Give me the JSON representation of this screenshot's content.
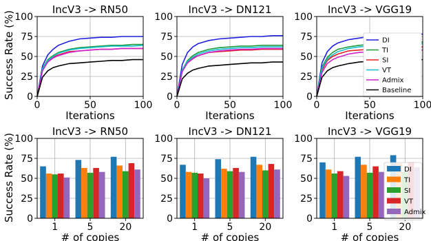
{
  "figure": {
    "y_label": "Success Rate (%)"
  },
  "colors": {
    "DI": "#1f1fdf",
    "TI": "#1a9a3a",
    "SI": "#e0201f",
    "VT": "#17becf",
    "Admix": "#cc22cc",
    "Baseline": "#000000",
    "bar_DI": "#1f77b4",
    "bar_TI": "#ff7f0e",
    "bar_SI": "#2ca02c",
    "bar_VT": "#d62728",
    "bar_Admix": "#9467bd"
  },
  "chart_data": [
    {
      "type": "line",
      "title": "IncV3 -> RN50",
      "xlabel": "Iterations",
      "ylabel": "Success Rate (%)",
      "xlim": [
        0,
        100
      ],
      "ylim": [
        0,
        100
      ],
      "xticks": [
        0,
        50,
        100
      ],
      "yticks": [
        0,
        25,
        50,
        75,
        100
      ],
      "grid": true,
      "series": [
        {
          "name": "DI",
          "x": [
            0,
            5,
            10,
            15,
            20,
            30,
            40,
            50,
            60,
            70,
            80,
            90,
            100
          ],
          "y": [
            0,
            38,
            52,
            59,
            64,
            69,
            72,
            73,
            74,
            74,
            75,
            75,
            75
          ]
        },
        {
          "name": "TI",
          "x": [
            0,
            5,
            10,
            15,
            20,
            30,
            40,
            50,
            60,
            70,
            80,
            90,
            100
          ],
          "y": [
            0,
            35,
            46,
            51,
            55,
            59,
            61,
            62,
            63,
            64,
            64,
            65,
            65
          ]
        },
        {
          "name": "SI",
          "x": [
            0,
            5,
            10,
            15,
            20,
            30,
            40,
            50,
            60,
            70,
            80,
            90,
            100
          ],
          "y": [
            0,
            33,
            44,
            49,
            52,
            56,
            57,
            58,
            59,
            59,
            60,
            60,
            60
          ]
        },
        {
          "name": "VT",
          "x": [
            0,
            5,
            10,
            15,
            20,
            30,
            40,
            50,
            60,
            70,
            80,
            90,
            100
          ],
          "y": [
            0,
            34,
            45,
            50,
            54,
            58,
            60,
            61,
            62,
            63,
            63,
            63,
            64
          ]
        },
        {
          "name": "Admix",
          "x": [
            0,
            5,
            10,
            15,
            20,
            30,
            40,
            50,
            60,
            70,
            80,
            90,
            100
          ],
          "y": [
            0,
            32,
            43,
            48,
            51,
            55,
            57,
            58,
            59,
            59,
            60,
            60,
            60
          ]
        },
        {
          "name": "Baseline",
          "x": [
            0,
            5,
            10,
            15,
            20,
            30,
            40,
            50,
            60,
            70,
            80,
            90,
            100
          ],
          "y": [
            0,
            24,
            32,
            36,
            38,
            41,
            42,
            43,
            44,
            45,
            45,
            46,
            46
          ]
        }
      ]
    },
    {
      "type": "line",
      "title": "IncV3 -> DN121",
      "xlabel": "Iterations",
      "ylabel": "",
      "xlim": [
        0,
        100
      ],
      "ylim": [
        0,
        100
      ],
      "xticks": [
        0,
        50,
        100
      ],
      "yticks": [
        0,
        25,
        50,
        75,
        100
      ],
      "grid": true,
      "series": [
        {
          "name": "DI",
          "x": [
            0,
            5,
            10,
            15,
            20,
            30,
            40,
            50,
            60,
            70,
            80,
            90,
            100
          ],
          "y": [
            0,
            40,
            55,
            62,
            66,
            70,
            72,
            73,
            74,
            75,
            75,
            76,
            76
          ]
        },
        {
          "name": "TI",
          "x": [
            0,
            5,
            10,
            15,
            20,
            30,
            40,
            50,
            60,
            70,
            80,
            90,
            100
          ],
          "y": [
            0,
            33,
            45,
            51,
            55,
            59,
            61,
            62,
            63,
            63,
            64,
            64,
            64
          ]
        },
        {
          "name": "SI",
          "x": [
            0,
            5,
            10,
            15,
            20,
            30,
            40,
            50,
            60,
            70,
            80,
            90,
            100
          ],
          "y": [
            0,
            32,
            43,
            48,
            51,
            55,
            56,
            57,
            58,
            58,
            59,
            59,
            59
          ]
        },
        {
          "name": "VT",
          "x": [
            0,
            5,
            10,
            15,
            20,
            30,
            40,
            50,
            60,
            70,
            80,
            90,
            100
          ],
          "y": [
            0,
            33,
            44,
            49,
            53,
            57,
            59,
            60,
            61,
            61,
            62,
            62,
            62
          ]
        },
        {
          "name": "Admix",
          "x": [
            0,
            5,
            10,
            15,
            20,
            30,
            40,
            50,
            60,
            70,
            80,
            90,
            100
          ],
          "y": [
            0,
            31,
            42,
            47,
            51,
            55,
            57,
            58,
            59,
            59,
            60,
            60,
            60
          ]
        },
        {
          "name": "Baseline",
          "x": [
            0,
            5,
            10,
            15,
            20,
            30,
            40,
            50,
            60,
            70,
            80,
            90,
            100
          ],
          "y": [
            0,
            22,
            29,
            33,
            35,
            38,
            39,
            40,
            41,
            42,
            42,
            43,
            43
          ]
        }
      ]
    },
    {
      "type": "line",
      "title": "IncV3 -> VGG19",
      "xlabel": "Iterations",
      "ylabel": "",
      "xlim": [
        0,
        100
      ],
      "ylim": [
        0,
        100
      ],
      "xticks": [
        0,
        50,
        100
      ],
      "yticks": [
        0,
        25,
        50,
        75,
        100
      ],
      "grid": true,
      "legend": "right",
      "series": [
        {
          "name": "DI",
          "x": [
            0,
            5,
            10,
            15,
            20,
            30,
            40,
            50,
            60,
            70,
            80,
            90,
            100
          ],
          "y": [
            0,
            42,
            56,
            63,
            67,
            71,
            73,
            75,
            76,
            77,
            77,
            78,
            78
          ]
        },
        {
          "name": "TI",
          "x": [
            0,
            5,
            10,
            15,
            20,
            30,
            40,
            50,
            60,
            70,
            80,
            90,
            100
          ],
          "y": [
            0,
            37,
            49,
            55,
            59,
            62,
            64,
            65,
            66,
            66,
            67,
            67,
            68
          ]
        },
        {
          "name": "SI",
          "x": [
            0,
            5,
            10,
            15,
            20,
            30,
            40,
            50,
            60,
            70,
            80,
            90,
            100
          ],
          "y": [
            0,
            33,
            45,
            50,
            53,
            57,
            58,
            59,
            60,
            60,
            61,
            61,
            62
          ]
        },
        {
          "name": "VT",
          "x": [
            0,
            5,
            10,
            15,
            20,
            30,
            40,
            50,
            60,
            70,
            80,
            90,
            100
          ],
          "y": [
            0,
            35,
            47,
            52,
            56,
            60,
            62,
            63,
            64,
            64,
            65,
            65,
            66
          ]
        },
        {
          "name": "Admix",
          "x": [
            0,
            5,
            10,
            15,
            20,
            30,
            40,
            50,
            60,
            70,
            80,
            90,
            100
          ],
          "y": [
            0,
            30,
            41,
            46,
            49,
            53,
            55,
            56,
            57,
            57,
            58,
            58,
            58
          ]
        },
        {
          "name": "Baseline",
          "x": [
            0,
            5,
            10,
            15,
            20,
            30,
            40,
            50,
            60,
            70,
            80,
            90,
            100
          ],
          "y": [
            0,
            24,
            32,
            36,
            38,
            41,
            43,
            44,
            45,
            45,
            46,
            46,
            46
          ]
        }
      ]
    },
    {
      "type": "bar",
      "title": "IncV3 -> RN50",
      "xlabel": "# of copies",
      "ylabel": "Success Rate (%)",
      "categories": [
        "1",
        "5",
        "20"
      ],
      "ylim": [
        0,
        100
      ],
      "yticks": [
        0,
        25,
        50,
        75,
        100
      ],
      "grid": true,
      "series": [
        {
          "name": "DI",
          "values": [
            65,
            73,
            77
          ]
        },
        {
          "name": "TI",
          "values": [
            56,
            63,
            66
          ]
        },
        {
          "name": "SI",
          "values": [
            55,
            57,
            59
          ]
        },
        {
          "name": "VT",
          "values": [
            56,
            63,
            69
          ]
        },
        {
          "name": "Admix",
          "values": [
            51,
            58,
            61
          ]
        }
      ]
    },
    {
      "type": "bar",
      "title": "IncV3 -> DN121",
      "xlabel": "# of copies",
      "ylabel": "",
      "categories": [
        "1",
        "5",
        "20"
      ],
      "ylim": [
        0,
        100
      ],
      "yticks": [
        0,
        25,
        50,
        75,
        100
      ],
      "grid": true,
      "series": [
        {
          "name": "DI",
          "values": [
            67,
            74,
            77
          ]
        },
        {
          "name": "TI",
          "values": [
            58,
            62,
            67
          ]
        },
        {
          "name": "SI",
          "values": [
            57,
            59,
            60
          ]
        },
        {
          "name": "VT",
          "values": [
            56,
            63,
            68
          ]
        },
        {
          "name": "Admix",
          "values": [
            50,
            58,
            61
          ]
        }
      ]
    },
    {
      "type": "bar",
      "title": "IncV3 -> VGG19",
      "xlabel": "# of copies",
      "ylabel": "",
      "categories": [
        "1",
        "5",
        "20"
      ],
      "ylim": [
        0,
        100
      ],
      "yticks": [
        0,
        25,
        50,
        75,
        100
      ],
      "grid": true,
      "legend": "right",
      "series": [
        {
          "name": "DI",
          "values": [
            70,
            77,
            79
          ]
        },
        {
          "name": "TI",
          "values": [
            61,
            67,
            69
          ]
        },
        {
          "name": "SI",
          "values": [
            56,
            57,
            58
          ]
        },
        {
          "name": "VT",
          "values": [
            59,
            65,
            70
          ]
        },
        {
          "name": "Admix",
          "values": [
            53,
            58,
            64
          ]
        }
      ]
    }
  ]
}
